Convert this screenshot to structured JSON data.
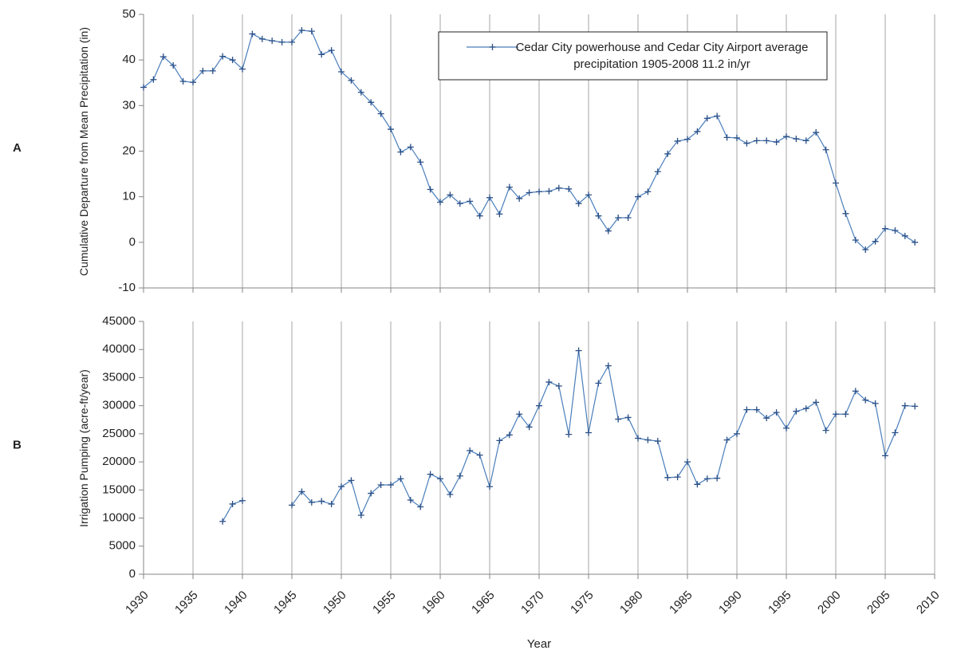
{
  "chart_data": [
    {
      "type": "line",
      "panel": "A",
      "ylabel": "Cumulative Departure from Mean Precipitation (in)",
      "x": [
        1930,
        1931,
        1932,
        1933,
        1934,
        1935,
        1936,
        1937,
        1938,
        1939,
        1940,
        1941,
        1942,
        1943,
        1944,
        1945,
        1946,
        1947,
        1948,
        1949,
        1950,
        1951,
        1952,
        1953,
        1954,
        1955,
        1956,
        1957,
        1958,
        1959,
        1960,
        1961,
        1962,
        1963,
        1964,
        1965,
        1966,
        1967,
        1968,
        1969,
        1970,
        1971,
        1972,
        1973,
        1974,
        1975,
        1976,
        1977,
        1978,
        1979,
        1980,
        1981,
        1982,
        1983,
        1984,
        1985,
        1986,
        1987,
        1988,
        1989,
        1990,
        1991,
        1992,
        1993,
        1994,
        1995,
        1996,
        1997,
        1998,
        1999,
        2000,
        2001,
        2002,
        2003,
        2004,
        2005,
        2006,
        2007,
        2008
      ],
      "series": [
        {
          "name": "Cedar City powerhouse and Cedar City Airport average precipitation 1905-2008 11.2 in/yr",
          "color": "#4a7ebb",
          "values": [
            34,
            35.7,
            40.7,
            38.8,
            35.3,
            35.1,
            37.6,
            37.6,
            40.8,
            40,
            38,
            45.7,
            44.6,
            44.2,
            43.9,
            43.9,
            46.5,
            46.3,
            41.2,
            42.1,
            37.4,
            35.5,
            32.9,
            30.7,
            28.2,
            24.8,
            19.8,
            20.9,
            17.6,
            11.6,
            8.8,
            10.4,
            8.5,
            9,
            5.8,
            9.8,
            6.2,
            12.1,
            9.6,
            10.9,
            11.1,
            11.2,
            11.9,
            11.7,
            8.5,
            10.4,
            5.8,
            2.5,
            5.4,
            5.4,
            10,
            11.1,
            15.5,
            19.4,
            22.2,
            22.6,
            24.3,
            27.2,
            27.7,
            23,
            22.9,
            21.7,
            22.3,
            22.3,
            22,
            23.2,
            22.7,
            22.3,
            24.1,
            20.3,
            13,
            6.3,
            0.5,
            -1.6,
            0.2,
            3,
            2.6,
            1.4,
            0
          ]
        }
      ],
      "xlim": [
        1930,
        2010
      ],
      "xticks": [
        1930,
        1935,
        1940,
        1945,
        1950,
        1955,
        1960,
        1965,
        1970,
        1975,
        1980,
        1985,
        1990,
        1995,
        2000,
        2005,
        2010
      ],
      "xtick_labels": false,
      "ylim": [
        -10,
        50
      ],
      "yticks": [
        -10,
        0,
        10,
        20,
        30,
        40,
        50
      ],
      "grid": "x",
      "legend": "top-right"
    },
    {
      "type": "line",
      "panel": "B",
      "xlabel": "Year",
      "ylabel": "Irrigation Pumping (acre-ft/year)",
      "x": [
        1938,
        1939,
        1940,
        1941,
        1942,
        1943,
        1944,
        1945,
        1946,
        1947,
        1948,
        1949,
        1950,
        1951,
        1952,
        1953,
        1954,
        1955,
        1956,
        1957,
        1958,
        1959,
        1960,
        1961,
        1962,
        1963,
        1964,
        1965,
        1966,
        1967,
        1968,
        1969,
        1970,
        1971,
        1972,
        1973,
        1974,
        1975,
        1976,
        1977,
        1978,
        1979,
        1980,
        1981,
        1982,
        1983,
        1984,
        1985,
        1986,
        1987,
        1988,
        1989,
        1990,
        1991,
        1992,
        1993,
        1994,
        1995,
        1996,
        1997,
        1998,
        1999,
        2000,
        2001,
        2002,
        2003,
        2004,
        2005,
        2006,
        2007,
        2008
      ],
      "series": [
        {
          "color": "#4a7ebb",
          "values": [
            9400,
            12500,
            13100,
            null,
            null,
            null,
            null,
            12300,
            14700,
            12800,
            13000,
            12500,
            15600,
            16700,
            10500,
            14400,
            15900,
            15900,
            17000,
            13200,
            12000,
            17800,
            17000,
            14200,
            17500,
            22000,
            21200,
            15600,
            23800,
            24800,
            28500,
            26200,
            30000,
            34200,
            33500,
            24900,
            39800,
            25200,
            34000,
            37100,
            27600,
            27900,
            24200,
            23900,
            23700,
            17200,
            17300,
            20000,
            16000,
            17000,
            17100,
            23900,
            25000,
            29300,
            29300,
            27800,
            28800,
            26000,
            29000,
            29500,
            30600,
            25600,
            28500,
            28500,
            32600,
            31000,
            30400,
            21100,
            25200,
            30000,
            29900
          ]
        }
      ],
      "xlim": [
        1930,
        2010
      ],
      "xticks": [
        1930,
        1935,
        1940,
        1945,
        1950,
        1955,
        1960,
        1965,
        1970,
        1975,
        1980,
        1985,
        1990,
        1995,
        2000,
        2005,
        2010
      ],
      "xtick_labels": true,
      "ylim": [
        0,
        45000
      ],
      "yticks": [
        0,
        5000,
        10000,
        15000,
        20000,
        25000,
        30000,
        35000,
        40000,
        45000
      ],
      "grid": "x"
    }
  ]
}
